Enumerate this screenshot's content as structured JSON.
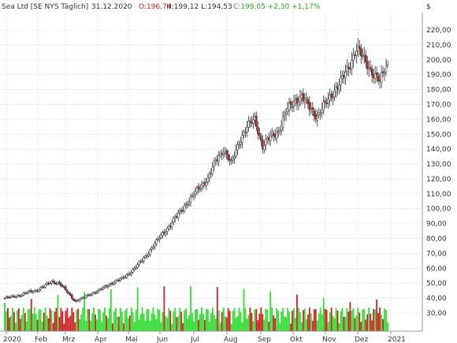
{
  "header": {
    "symbol": "Sea Ltd [SE NYS  Täglich]",
    "date": "31.12.2020",
    "open": "O:196,74",
    "hilo": "H:199,12 L:194,53",
    "close": "C:199,05 +2,30 +1,17%",
    "currency": "$"
  },
  "colors": {
    "up": "#33dd33",
    "down": "#cc2222",
    "wick": "#333333",
    "grid": "#d4d4d4",
    "open": "#cc2222",
    "close": "#22aa22",
    "neutral": "#333333"
  },
  "chart_data": {
    "type": "candlestick",
    "title": "Sea Ltd [SE NYS  Täglich]",
    "ylabel": "$",
    "ylim": [
      21,
      225
    ],
    "y_ticks": [
      "30,00",
      "40,00",
      "50,00",
      "60,00",
      "70,00",
      "80,00",
      "90,00",
      "100,00",
      "110,00",
      "120,00",
      "130,00",
      "140,00",
      "150,00",
      "160,00",
      "170,00",
      "180,00",
      "190,00",
      "200,00",
      "210,00",
      "220,00"
    ],
    "months": [
      "2020",
      "Feb",
      "Mrz",
      "Apr",
      "Mai",
      "Jun",
      "Jul",
      "Aug",
      "Sep",
      "Okt",
      "Nov",
      "Dez",
      "2021"
    ],
    "grid": true,
    "weekly_close": [
      40,
      41,
      42,
      44,
      45,
      48,
      51,
      50,
      44,
      38,
      40,
      43,
      45,
      48,
      51,
      53,
      57,
      62,
      68,
      75,
      82,
      88,
      95,
      102,
      108,
      115,
      120,
      132,
      140,
      130,
      145,
      155,
      160,
      142,
      148,
      152,
      165,
      172,
      175,
      168,
      162,
      170,
      178,
      185,
      195,
      208,
      200,
      192,
      185,
      199
    ],
    "last": {
      "open": 196.74,
      "high": 199.12,
      "low": 194.53,
      "close": 199.05
    }
  }
}
